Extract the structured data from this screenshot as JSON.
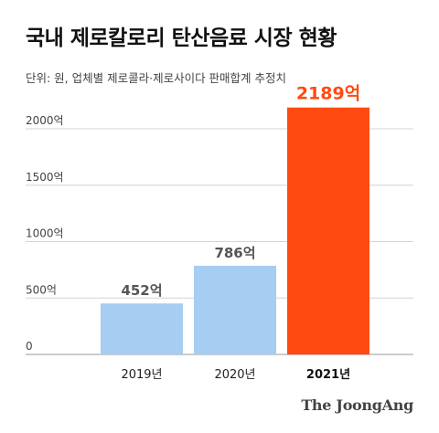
{
  "header": {
    "title": "국내 제로칼로리 탄산음료 시장 현황",
    "subtitle": "단위: 원, 업체별 제로콜라·제로사이다 판매합계 추정치"
  },
  "chart_data": {
    "type": "bar",
    "categories": [
      "2019년",
      "2020년",
      "2021년"
    ],
    "values": [
      452,
      786,
      2189
    ],
    "value_labels": [
      "452억",
      "786억",
      "2189억"
    ],
    "highlight_index": 2,
    "ylim": [
      0,
      2300
    ],
    "yticks": [
      0,
      500,
      1000,
      1500,
      2000
    ],
    "ytick_labels": [
      "0",
      "500억",
      "1000억",
      "1500억",
      "2000억"
    ],
    "grid": true,
    "colors": {
      "bar": "#a6cdf2",
      "highlight": "#ff4a12",
      "grid": "#d4d4d4"
    }
  },
  "footer": {
    "brand": "The JoongAng"
  }
}
